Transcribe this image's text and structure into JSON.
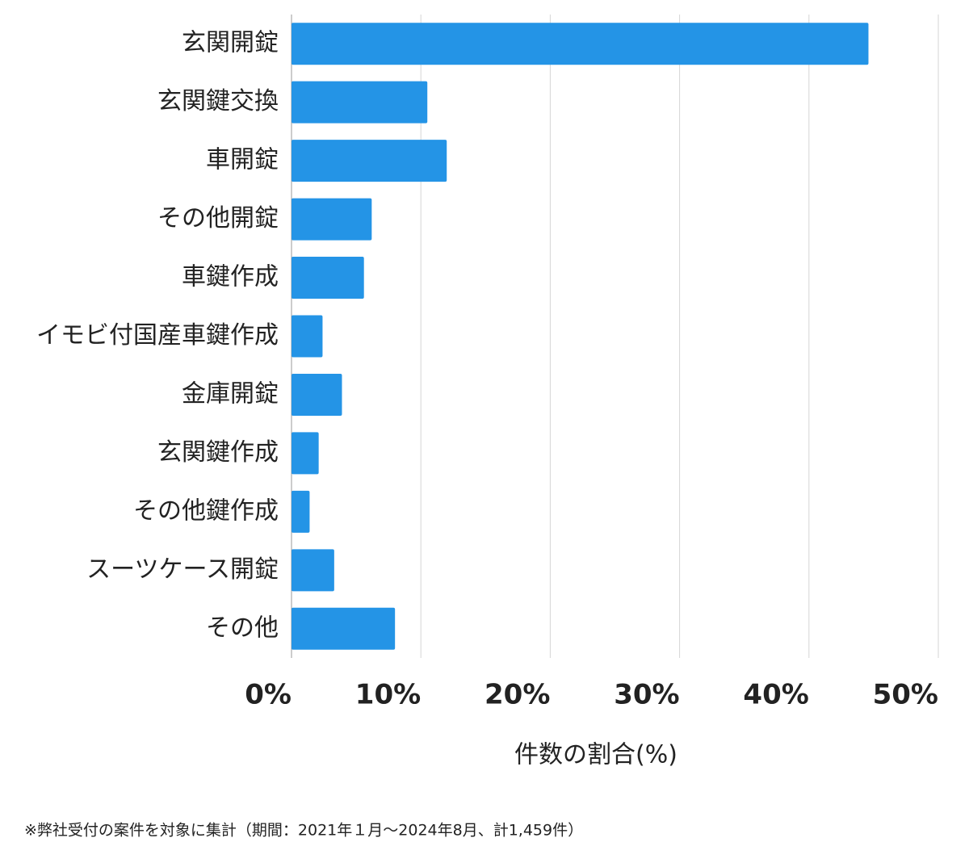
{
  "chart_data": {
    "type": "barh",
    "categories": [
      "玄関開錠",
      "玄関鍵交換",
      "車開錠",
      "その他開錠",
      "車鍵作成",
      "イモビ付国産車鍵作成",
      "金庫開錠",
      "玄関鍵作成",
      "その他鍵作成",
      "スーツケース開錠",
      "その他"
    ],
    "values": [
      44.6,
      10.5,
      12.0,
      6.2,
      5.6,
      2.4,
      3.9,
      2.1,
      1.4,
      3.3,
      8.0
    ],
    "color": "#2494e6",
    "xlim": [
      0,
      50
    ],
    "xticks": [
      {
        "value": 0,
        "label": "0%"
      },
      {
        "value": 10,
        "label": "10%"
      },
      {
        "value": 20,
        "label": "20%"
      },
      {
        "value": 30,
        "label": "30%"
      },
      {
        "value": 40,
        "label": "40%"
      },
      {
        "value": 50,
        "label": "50%"
      }
    ],
    "grid": true,
    "xlabel": "件数の割合(%)",
    "footnote": "※弊社受付の案件を対象に集計（期間：2021年１月〜2024年8月、計1,459件）"
  }
}
